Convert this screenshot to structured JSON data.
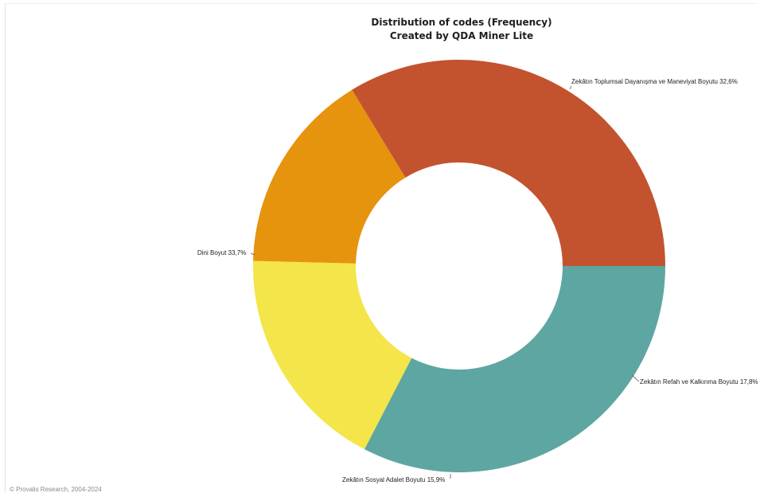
{
  "chart_data": {
    "type": "pie",
    "variant": "donut",
    "title": "Distribution of codes (Frequency)",
    "subtitle": "Created by QDA Miner Lite",
    "slices": [
      {
        "label": "Zekâtın Toplumsal Dayanışma ve Maneviyat Boyutu",
        "percent_text": "32,6%",
        "value": 32.6,
        "color": "#5ea6a2"
      },
      {
        "label": "Zekâtın Refah ve Kalkınma Boyutu",
        "percent_text": "17,8%",
        "value": 17.8,
        "color": "#f3e54a"
      },
      {
        "label": "Zekâtın Sosyal Adalet Boyutu",
        "percent_text": "15,9%",
        "value": 15.9,
        "color": "#e6930d"
      },
      {
        "label": "Dini Boyut",
        "percent_text": "33,7%",
        "value": 33.7,
        "color": "#c3532e"
      }
    ],
    "start_angle": "3 o'clock, clockwise",
    "legend": "none"
  },
  "footer": {
    "copyright": "© Provalis Research, 2004-2024"
  }
}
